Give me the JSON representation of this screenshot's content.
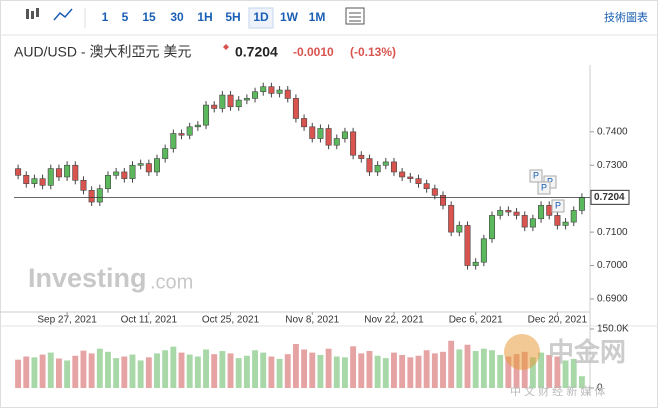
{
  "toolbar": {
    "intervals": [
      "1",
      "5",
      "15",
      "30",
      "1H",
      "5H",
      "1D",
      "1W",
      "1M"
    ],
    "active": 6,
    "chart_link": "技術圖表"
  },
  "header": {
    "symbol": "AUD/USD - 澳大利亞元 美元",
    "change": "-0.0010",
    "change_percent": "(-0.13%)"
  },
  "watermark": {
    "brand": "Investing",
    "suffix": ".com",
    "logo": "中金网",
    "logo_sub": "中 文 财 经 新 媒 体"
  },
  "markers": [
    "P",
    "P",
    "P",
    "P"
  ],
  "chart_data": {
    "type": "candlestick",
    "categories": [
      null,
      null,
      null,
      null,
      null,
      null,
      "Sep 27, 2021",
      null,
      null,
      null,
      null,
      null,
      null,
      null,
      null,
      null,
      "Oct 11, 2021",
      null,
      null,
      null,
      null,
      null,
      null,
      null,
      null,
      null,
      "Oct 25, 2021",
      null,
      null,
      null,
      null,
      null,
      null,
      null,
      null,
      null,
      "Nov 8, 2021",
      null,
      null,
      null,
      null,
      null,
      null,
      null,
      null,
      null,
      "Nov 22, 2021",
      null,
      null,
      null,
      null,
      null,
      null,
      null,
      null,
      null,
      "Dec 6, 2021",
      null,
      null,
      null,
      null,
      null,
      null,
      null,
      null,
      null,
      "Dec 20, 2021",
      null,
      null,
      null
    ],
    "open": [
      0.729,
      0.727,
      0.7245,
      0.726,
      0.724,
      0.729,
      0.7265,
      0.73,
      0.7255,
      0.7225,
      0.719,
      0.723,
      0.727,
      0.728,
      0.726,
      0.73,
      0.7305,
      0.728,
      0.732,
      0.735,
      0.7395,
      0.739,
      0.7415,
      0.742,
      0.748,
      0.747,
      0.751,
      0.7475,
      0.7495,
      0.75,
      0.752,
      0.7535,
      0.7515,
      0.7525,
      0.75,
      0.744,
      0.7415,
      0.738,
      0.741,
      0.736,
      0.738,
      0.74,
      0.733,
      0.732,
      0.728,
      0.73,
      0.731,
      0.728,
      0.7265,
      0.726,
      0.7245,
      0.723,
      0.721,
      0.718,
      0.71,
      0.712,
      0.7,
      0.701,
      0.708,
      0.715,
      0.7165,
      0.716,
      0.715,
      0.7115,
      0.714,
      0.718,
      0.715,
      0.712,
      0.713,
      0.7165
    ],
    "high": [
      0.7302,
      0.7282,
      0.7272,
      0.7272,
      0.7302,
      0.7302,
      0.7312,
      0.7312,
      0.7267,
      0.7237,
      0.7242,
      0.7282,
      0.7292,
      0.7292,
      0.7312,
      0.7317,
      0.7317,
      0.7332,
      0.7362,
      0.7407,
      0.7407,
      0.7427,
      0.7432,
      0.7492,
      0.7492,
      0.7522,
      0.7522,
      0.7507,
      0.7512,
      0.7532,
      0.7547,
      0.7547,
      0.7537,
      0.7537,
      0.7512,
      0.7452,
      0.7427,
      0.7422,
      0.7422,
      0.7392,
      0.7412,
      0.7412,
      0.7342,
      0.7332,
      0.7312,
      0.7322,
      0.7322,
      0.7292,
      0.7277,
      0.7272,
      0.7257,
      0.7242,
      0.7222,
      0.7192,
      0.7132,
      0.7132,
      0.7022,
      0.7092,
      0.7162,
      0.7177,
      0.7177,
      0.7172,
      0.7162,
      0.7152,
      0.7192,
      0.7192,
      0.7162,
      0.7142,
      0.7177,
      0.7216
    ],
    "low": [
      0.7258,
      0.7233,
      0.7233,
      0.7228,
      0.7228,
      0.7253,
      0.7253,
      0.7243,
      0.7213,
      0.7178,
      0.7178,
      0.7218,
      0.7258,
      0.7248,
      0.7248,
      0.7288,
      0.7268,
      0.7268,
      0.7308,
      0.7338,
      0.7378,
      0.7378,
      0.7403,
      0.7408,
      0.7458,
      0.7458,
      0.7463,
      0.7463,
      0.7483,
      0.7488,
      0.7508,
      0.7503,
      0.7503,
      0.7488,
      0.7428,
      0.7403,
      0.7368,
      0.7368,
      0.7348,
      0.7348,
      0.7368,
      0.7318,
      0.7308,
      0.7268,
      0.7268,
      0.7288,
      0.7268,
      0.7253,
      0.7248,
      0.7233,
      0.7218,
      0.7198,
      0.7168,
      0.7088,
      0.7088,
      0.6988,
      0.6988,
      0.6998,
      0.7068,
      0.7138,
      0.7148,
      0.7138,
      0.7103,
      0.7103,
      0.7128,
      0.7138,
      0.7108,
      0.7108,
      0.7118,
      0.7153
    ],
    "close": [
      0.727,
      0.7245,
      0.726,
      0.724,
      0.729,
      0.7265,
      0.73,
      0.7255,
      0.7225,
      0.719,
      0.723,
      0.727,
      0.728,
      0.726,
      0.73,
      0.7305,
      0.728,
      0.732,
      0.735,
      0.7395,
      0.739,
      0.7415,
      0.742,
      0.748,
      0.747,
      0.751,
      0.7475,
      0.7495,
      0.75,
      0.752,
      0.7535,
      0.7515,
      0.7525,
      0.75,
      0.744,
      0.7415,
      0.738,
      0.741,
      0.736,
      0.738,
      0.74,
      0.733,
      0.732,
      0.728,
      0.73,
      0.731,
      0.728,
      0.7265,
      0.726,
      0.7245,
      0.723,
      0.721,
      0.718,
      0.71,
      0.712,
      0.7,
      0.701,
      0.708,
      0.715,
      0.7165,
      0.716,
      0.715,
      0.7115,
      0.714,
      0.718,
      0.715,
      0.712,
      0.713,
      0.7165,
      0.7204
    ],
    "volume": [
      72,
      80,
      78,
      85,
      90,
      75,
      70,
      82,
      95,
      88,
      100,
      92,
      76,
      80,
      85,
      70,
      78,
      88,
      96,
      105,
      90,
      85,
      80,
      98,
      86,
      94,
      88,
      76,
      82,
      96,
      90,
      80,
      74,
      86,
      112,
      98,
      90,
      84,
      100,
      80,
      78,
      106,
      88,
      94,
      82,
      76,
      90,
      84,
      78,
      82,
      96,
      88,
      92,
      120,
      98,
      110,
      94,
      100,
      96,
      84,
      80,
      86,
      92,
      78,
      90,
      84,
      80,
      70,
      74,
      30
    ],
    "ylim": [
      0.6861,
      0.7585
    ],
    "yticks": [
      {
        "value": 0.69,
        "label": "0.6900"
      },
      {
        "value": 0.7,
        "label": "0.7000"
      },
      {
        "value": 0.71,
        "label": "0.7100"
      },
      {
        "value": 0.73,
        "label": "0.7300"
      },
      {
        "value": 0.74,
        "label": "0.7400"
      }
    ],
    "volume_ylim": [
      0,
      150
    ],
    "volume_yticks": [
      {
        "value": 150,
        "label": "150.0K"
      },
      0
    ],
    "up_color": "#5cb85c",
    "down_color": "#d9534f",
    "volume_up_color": "#a8d8a8",
    "volume_down_color": "#e6a3a3",
    "grid": false
  }
}
